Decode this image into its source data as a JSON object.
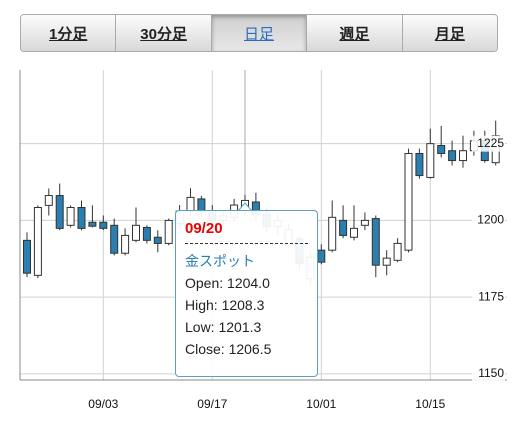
{
  "tabs": [
    "1分足",
    "30分足",
    "日足",
    "週足",
    "月足"
  ],
  "selected_tab": 2,
  "chart_data": {
    "type": "candlestick",
    "categories": [
      null,
      null,
      null,
      null,
      null,
      null,
      null,
      "09/03",
      null,
      null,
      null,
      null,
      null,
      null,
      null,
      null,
      null,
      "09/17",
      null,
      null,
      null,
      null,
      null,
      null,
      null,
      null,
      null,
      "10/01",
      null,
      null,
      null,
      null,
      null,
      null,
      null,
      null,
      null,
      "10/15",
      null,
      null,
      null,
      null,
      null,
      null
    ],
    "series": [
      {
        "name": "金スポット",
        "up_color": "#ffffff",
        "down_color": "#2a7fb0",
        "open": [
          1193.5,
          1182.1,
          1204.9,
          1208.1,
          1198.4,
          1204.2,
          1199.4,
          1199.4,
          1198.4,
          1189.3,
          1193.5,
          1197.7,
          1194.5,
          1192.5,
          1199,
          1203,
          1207,
          1203,
          1200,
          1201,
          1204.0,
          1206,
          1202,
          1198,
          1192,
          1194,
          1181,
          1190.3,
          1190.3,
          1200.0,
          1194.5,
          1198.4,
          1200.6,
          1185.4,
          1187.0,
          1190.3,
          1221.8,
          1214.0,
          1224.4,
          1222.7,
          1219.5,
          1222.7,
          1226.0,
          1218.8
        ],
        "high": [
          1196.1,
          1204.9,
          1210.4,
          1212.0,
          1204.9,
          1206.5,
          1204.9,
          1201.6,
          1200.6,
          1197.4,
          1204.2,
          1198.4,
          1196.8,
          1200.6,
          1205,
          1210.5,
          1208,
          1205,
          1203,
          1207,
          1208.3,
          1209,
          1203.5,
          1202,
          1199,
          1195,
          1190,
          1192.2,
          1206.5,
          1204.9,
          1204.9,
          1202.6,
          1201.6,
          1190.3,
          1194.2,
          1223.4,
          1223.4,
          1229.9,
          1230.8,
          1226.0,
          1227.6,
          1229.2,
          1229.2,
          1232.5
        ],
        "low": [
          1181.5,
          1181.2,
          1201.6,
          1196.8,
          1197.7,
          1196.8,
          1197.7,
          1196.8,
          1188.6,
          1188.6,
          1192.9,
          1192.5,
          1189.6,
          1191.9,
          1197,
          1201.5,
          1201,
          1198,
          1198,
          1199.5,
          1201.3,
          1200,
          1196,
          1195.5,
          1191,
          1184,
          1179,
          1185.7,
          1189.6,
          1194.2,
          1193.5,
          1196.8,
          1181.5,
          1182.1,
          1186.4,
          1189.6,
          1213.6,
          1213.6,
          1220.5,
          1217.9,
          1217.2,
          1221.1,
          1218.8,
          1217.9
        ],
        "close": [
          1182.8,
          1204.2,
          1208.1,
          1197.4,
          1204.2,
          1197.4,
          1198.1,
          1197.4,
          1189.3,
          1195.1,
          1198.4,
          1193.5,
          1192.5,
          1200.0,
          1203,
          1207.5,
          1203,
          1200,
          1201.5,
          1205,
          1206.5,
          1202,
          1198,
          1200,
          1197,
          1186,
          1188,
          1186.4,
          1201.0,
          1195.1,
          1197.4,
          1200.0,
          1185.4,
          1187.7,
          1192.5,
          1221.8,
          1214.6,
          1225.0,
          1221.8,
          1219.5,
          1222.7,
          1225.9,
          1219.5,
          1227.6
        ]
      }
    ],
    "ylim": [
      1148,
      1249
    ],
    "yticks": [
      1150,
      1175,
      1200,
      1225
    ],
    "grid": true,
    "tooltip": {
      "index": 20,
      "date": "09/20",
      "name": "金スポット",
      "fields": [
        {
          "label": "Open:",
          "value": "1204.0"
        },
        {
          "label": "High:",
          "value": "1208.3"
        },
        {
          "label": "Low:",
          "value": "1201.3"
        },
        {
          "label": "Close:",
          "value": "1206.5"
        }
      ]
    }
  }
}
